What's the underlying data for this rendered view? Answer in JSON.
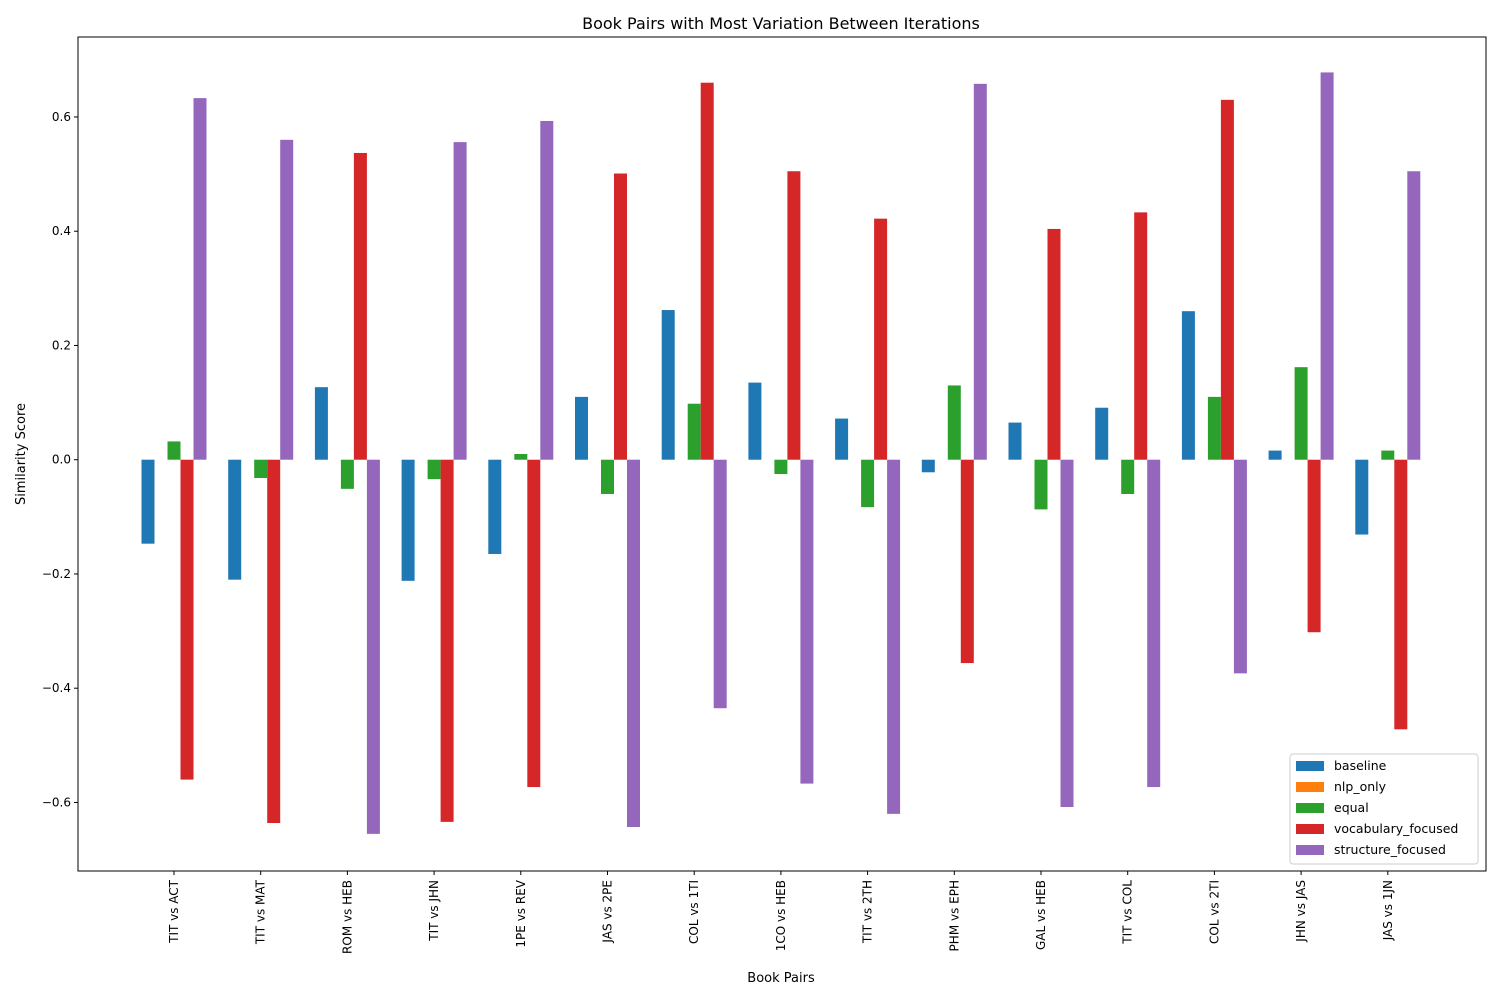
{
  "chart_data": {
    "type": "bar",
    "title": "Book Pairs with Most Variation Between Iterations",
    "xlabel": "Book Pairs",
    "ylabel": "Similarity Score",
    "ylim": [
      -0.72,
      0.74
    ],
    "yticks": [
      -0.6,
      -0.4,
      -0.2,
      0.0,
      0.2,
      0.4,
      0.6
    ],
    "ytick_labels": [
      "−0.6",
      "−0.4",
      "−0.2",
      "0.0",
      "0.2",
      "0.4",
      "0.6"
    ],
    "grid": false,
    "legend_position": "bottom-right",
    "categories": [
      "TIT vs ACT",
      "TIT vs MAT",
      "ROM vs HEB",
      "TIT vs JHN",
      "1PE vs REV",
      "JAS vs 2PE",
      "COL vs 1TI",
      "1CO vs HEB",
      "TIT vs 2TH",
      "PHM vs EPH",
      "GAL vs HEB",
      "TIT vs COL",
      "COL vs 2TI",
      "JHN vs JAS",
      "JAS vs 1JN"
    ],
    "series": [
      {
        "name": "baseline",
        "color": "#1f77b4",
        "values": [
          -0.147,
          -0.21,
          0.127,
          -0.212,
          -0.165,
          0.11,
          0.262,
          0.135,
          0.072,
          -0.022,
          0.065,
          0.091,
          0.26,
          0.016,
          -0.131
        ]
      },
      {
        "name": "nlp_only",
        "color": "#ff7f0e",
        "values": [
          0,
          0,
          0,
          0,
          0,
          0,
          0,
          0,
          0,
          0,
          0,
          0,
          0,
          0,
          0
        ]
      },
      {
        "name": "equal",
        "color": "#2ca02c",
        "values": [
          0.032,
          -0.032,
          -0.051,
          -0.034,
          0.01,
          -0.06,
          0.098,
          -0.025,
          -0.083,
          0.13,
          -0.087,
          -0.06,
          0.11,
          0.162,
          0.016
        ]
      },
      {
        "name": "vocabulary_focused",
        "color": "#d62728",
        "values": [
          -0.56,
          -0.636,
          0.537,
          -0.634,
          -0.573,
          0.501,
          0.66,
          0.505,
          0.422,
          -0.356,
          0.404,
          0.433,
          0.63,
          -0.302,
          -0.472
        ]
      },
      {
        "name": "structure_focused",
        "color": "#9467bd",
        "values": [
          0.633,
          0.56,
          -0.655,
          0.556,
          0.593,
          -0.643,
          -0.435,
          -0.567,
          -0.62,
          0.658,
          -0.608,
          -0.573,
          -0.374,
          0.678,
          0.505
        ]
      }
    ]
  }
}
